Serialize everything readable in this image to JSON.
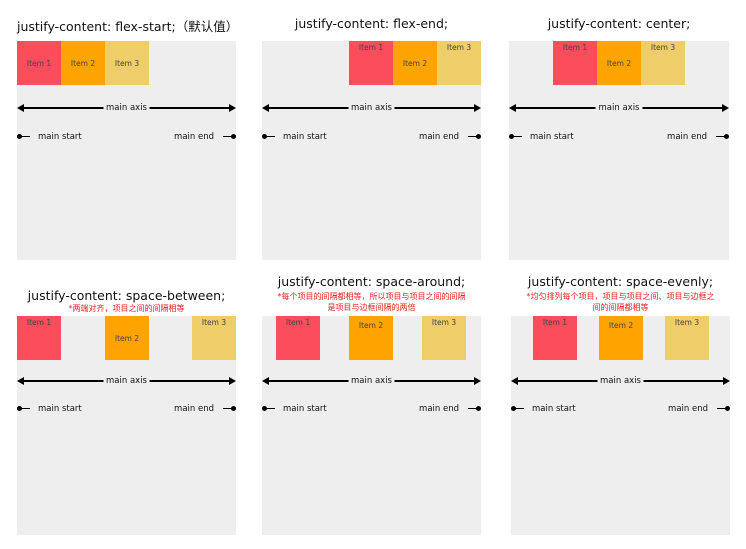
{
  "palette": {
    "item1": "#fc4d5c",
    "item2": "#fea401",
    "item3": "#efcd68",
    "box": "#eeeeee"
  },
  "labels": {
    "main_axis": "main axis",
    "main_start": "main start",
    "main_end": "main end"
  },
  "items": [
    "Item 1",
    "Item 2",
    "Item 3"
  ],
  "panels": [
    {
      "title": "justify-content: flex-start;（默认值）",
      "note": "",
      "justify": "flex-start"
    },
    {
      "title": "justify-content: flex-end;",
      "note": "",
      "justify": "flex-end"
    },
    {
      "title": "justify-content: center;",
      "note": "",
      "justify": "center"
    },
    {
      "title": "justify-content: space-between;",
      "note": "*两端对齐，项目之间的间隔相等",
      "justify": "space-between"
    },
    {
      "title": "justify-content: space-around;",
      "note": "*每个项目的间隔都相等，所以项目与项目之间的间隔是项目与边框间隔的两倍",
      "justify": "space-around"
    },
    {
      "title": "justify-content: space-evenly;",
      "note": "*均匀排列每个项目，项目与项目之间、项目与边框之间的间隔都相等",
      "justify": "space-evenly"
    }
  ]
}
